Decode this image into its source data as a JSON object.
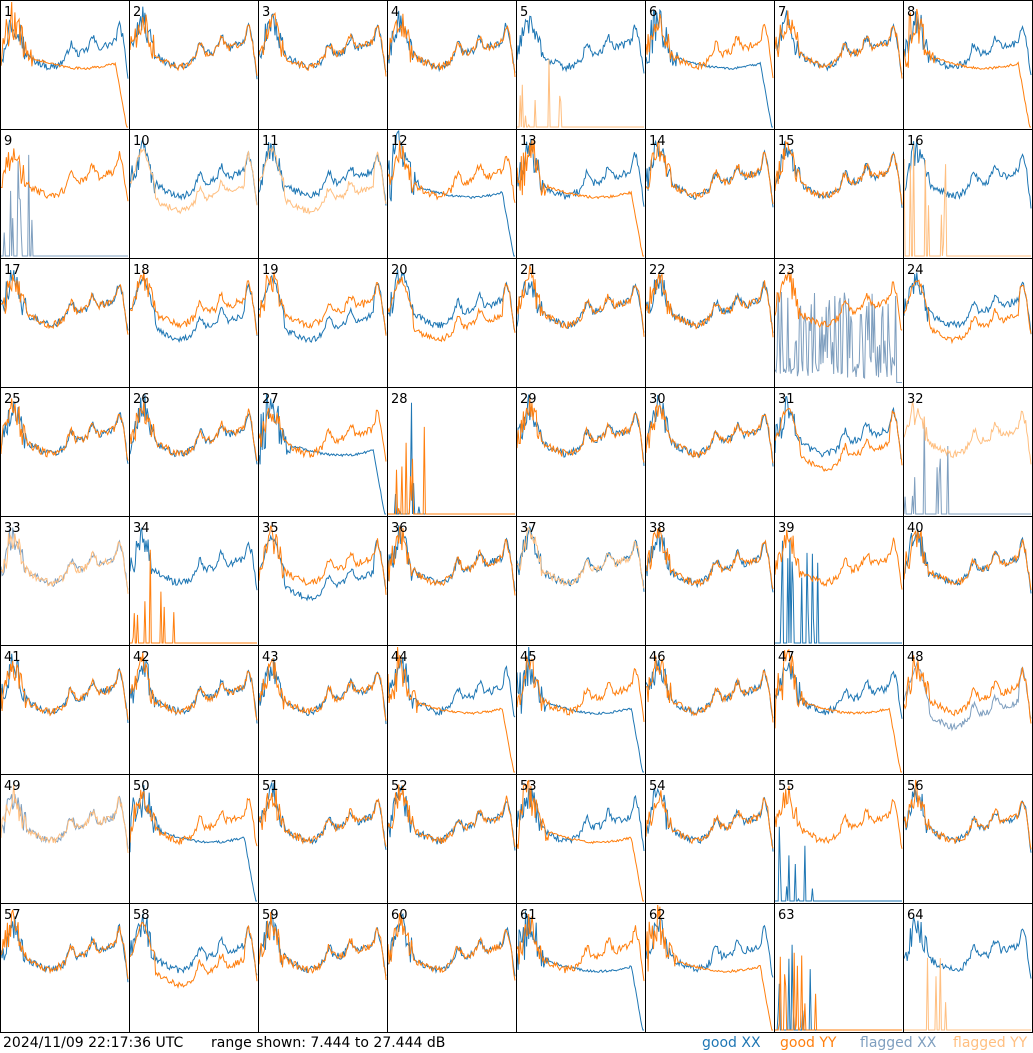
{
  "footer": {
    "timestamp": "2024/11/09 22:17:36 UTC",
    "range_text": "range shown: 7.444 to 27.444 dB"
  },
  "legend": [
    {
      "label": "good XX",
      "color": "#1f77b4"
    },
    {
      "label": "good YY",
      "color": "#ff7f0e"
    },
    {
      "label": "flagged XX",
      "color": "#7f9fbf"
    },
    {
      "label": "flagged YY",
      "color": "#ffbf80"
    }
  ],
  "chart_data": {
    "type": "line",
    "layout": "8x8 small multiples",
    "ylim": [
      7.444,
      27.444
    ],
    "yunit": "dB",
    "panels": [
      {
        "id": "1",
        "xx": "good",
        "yy": "good",
        "xx_shape": "normal",
        "yy_shape": "droop"
      },
      {
        "id": "2",
        "xx": "good",
        "yy": "good",
        "xx_shape": "normal",
        "yy_shape": "normal"
      },
      {
        "id": "3",
        "xx": "good",
        "yy": "good",
        "xx_shape": "normal",
        "yy_shape": "normal"
      },
      {
        "id": "4",
        "xx": "good",
        "yy": "good",
        "xx_shape": "normal",
        "yy_shape": "normal"
      },
      {
        "id": "5",
        "xx": "good",
        "yy": "flagged",
        "xx_shape": "normal",
        "yy_shape": "dead"
      },
      {
        "id": "6",
        "xx": "good",
        "yy": "good",
        "xx_shape": "droop",
        "yy_shape": "normal"
      },
      {
        "id": "7",
        "xx": "good",
        "yy": "good",
        "xx_shape": "normal",
        "yy_shape": "normal"
      },
      {
        "id": "8",
        "xx": "good",
        "yy": "good",
        "xx_shape": "normal",
        "yy_shape": "droop"
      },
      {
        "id": "9",
        "xx": "flagged",
        "yy": "good",
        "xx_shape": "dead",
        "yy_shape": "normal"
      },
      {
        "id": "10",
        "xx": "good",
        "yy": "flagged",
        "xx_shape": "normal",
        "yy_shape": "low"
      },
      {
        "id": "11",
        "xx": "good",
        "yy": "flagged",
        "xx_shape": "normal",
        "yy_shape": "low"
      },
      {
        "id": "12",
        "xx": "good",
        "yy": "good",
        "xx_shape": "droop",
        "yy_shape": "normal"
      },
      {
        "id": "13",
        "xx": "good",
        "yy": "good",
        "xx_shape": "normal",
        "yy_shape": "droop"
      },
      {
        "id": "14",
        "xx": "good",
        "yy": "good",
        "xx_shape": "normal",
        "yy_shape": "normal"
      },
      {
        "id": "15",
        "xx": "good",
        "yy": "good",
        "xx_shape": "normal",
        "yy_shape": "normal"
      },
      {
        "id": "16",
        "xx": "good",
        "yy": "flagged",
        "xx_shape": "normal",
        "yy_shape": "dead"
      },
      {
        "id": "17",
        "xx": "good",
        "yy": "good",
        "xx_shape": "normal",
        "yy_shape": "normal"
      },
      {
        "id": "18",
        "xx": "good",
        "yy": "good",
        "xx_shape": "low",
        "yy_shape": "normal"
      },
      {
        "id": "19",
        "xx": "good",
        "yy": "good",
        "xx_shape": "low",
        "yy_shape": "normal"
      },
      {
        "id": "20",
        "xx": "good",
        "yy": "good",
        "xx_shape": "normal",
        "yy_shape": "low"
      },
      {
        "id": "21",
        "xx": "good",
        "yy": "good",
        "xx_shape": "normal",
        "yy_shape": "normal"
      },
      {
        "id": "22",
        "xx": "good",
        "yy": "good",
        "xx_shape": "normal",
        "yy_shape": "normal"
      },
      {
        "id": "23",
        "xx": "flagged",
        "yy": "good",
        "xx_shape": "noise",
        "yy_shape": "normal"
      },
      {
        "id": "24",
        "xx": "good",
        "yy": "good",
        "xx_shape": "normal",
        "yy_shape": "low"
      },
      {
        "id": "25",
        "xx": "good",
        "yy": "good",
        "xx_shape": "normal",
        "yy_shape": "normal"
      },
      {
        "id": "26",
        "xx": "good",
        "yy": "good",
        "xx_shape": "normal",
        "yy_shape": "normal"
      },
      {
        "id": "27",
        "xx": "good",
        "yy": "good",
        "xx_shape": "droop",
        "yy_shape": "normal"
      },
      {
        "id": "28",
        "xx": "good",
        "yy": "good",
        "xx_shape": "dead",
        "yy_shape": "dead"
      },
      {
        "id": "29",
        "xx": "good",
        "yy": "good",
        "xx_shape": "normal",
        "yy_shape": "normal"
      },
      {
        "id": "30",
        "xx": "good",
        "yy": "good",
        "xx_shape": "normal",
        "yy_shape": "normal"
      },
      {
        "id": "31",
        "xx": "good",
        "yy": "good",
        "xx_shape": "normal",
        "yy_shape": "low"
      },
      {
        "id": "32",
        "xx": "flagged",
        "yy": "flagged",
        "xx_shape": "dead",
        "yy_shape": "normal"
      },
      {
        "id": "33",
        "xx": "flagged",
        "yy": "flagged",
        "xx_shape": "normal",
        "yy_shape": "normal"
      },
      {
        "id": "34",
        "xx": "good",
        "yy": "good",
        "xx_shape": "normal",
        "yy_shape": "dead"
      },
      {
        "id": "35",
        "xx": "good",
        "yy": "good",
        "xx_shape": "low",
        "yy_shape": "normal"
      },
      {
        "id": "36",
        "xx": "good",
        "yy": "good",
        "xx_shape": "normal",
        "yy_shape": "normal"
      },
      {
        "id": "37",
        "xx": "good",
        "yy": "flagged",
        "xx_shape": "normal",
        "yy_shape": "normal"
      },
      {
        "id": "38",
        "xx": "good",
        "yy": "good",
        "xx_shape": "normal",
        "yy_shape": "normal"
      },
      {
        "id": "39",
        "xx": "good",
        "yy": "good",
        "xx_shape": "dead",
        "yy_shape": "normal"
      },
      {
        "id": "40",
        "xx": "good",
        "yy": "good",
        "xx_shape": "normal",
        "yy_shape": "normal"
      },
      {
        "id": "41",
        "xx": "good",
        "yy": "good",
        "xx_shape": "normal",
        "yy_shape": "normal"
      },
      {
        "id": "42",
        "xx": "good",
        "yy": "good",
        "xx_shape": "normal",
        "yy_shape": "normal"
      },
      {
        "id": "43",
        "xx": "good",
        "yy": "good",
        "xx_shape": "normal",
        "yy_shape": "normal"
      },
      {
        "id": "44",
        "xx": "good",
        "yy": "good",
        "xx_shape": "normal",
        "yy_shape": "droop"
      },
      {
        "id": "45",
        "xx": "good",
        "yy": "good",
        "xx_shape": "droop",
        "yy_shape": "normal"
      },
      {
        "id": "46",
        "xx": "good",
        "yy": "good",
        "xx_shape": "normal",
        "yy_shape": "normal"
      },
      {
        "id": "47",
        "xx": "good",
        "yy": "good",
        "xx_shape": "normal",
        "yy_shape": "droop"
      },
      {
        "id": "48",
        "xx": "flagged",
        "yy": "good",
        "xx_shape": "low",
        "yy_shape": "normal"
      },
      {
        "id": "49",
        "xx": "flagged",
        "yy": "flagged",
        "xx_shape": "normal",
        "yy_shape": "normal"
      },
      {
        "id": "50",
        "xx": "good",
        "yy": "good",
        "xx_shape": "droop",
        "yy_shape": "normal"
      },
      {
        "id": "51",
        "xx": "good",
        "yy": "good",
        "xx_shape": "normal",
        "yy_shape": "normal"
      },
      {
        "id": "52",
        "xx": "good",
        "yy": "good",
        "xx_shape": "normal",
        "yy_shape": "normal"
      },
      {
        "id": "53",
        "xx": "good",
        "yy": "good",
        "xx_shape": "normal",
        "yy_shape": "droop"
      },
      {
        "id": "54",
        "xx": "good",
        "yy": "good",
        "xx_shape": "normal",
        "yy_shape": "normal"
      },
      {
        "id": "55",
        "xx": "good",
        "yy": "good",
        "xx_shape": "dead",
        "yy_shape": "normal"
      },
      {
        "id": "56",
        "xx": "good",
        "yy": "good",
        "xx_shape": "normal",
        "yy_shape": "normal"
      },
      {
        "id": "57",
        "xx": "good",
        "yy": "good",
        "xx_shape": "normal",
        "yy_shape": "normal"
      },
      {
        "id": "58",
        "xx": "good",
        "yy": "good",
        "xx_shape": "normal",
        "yy_shape": "low"
      },
      {
        "id": "59",
        "xx": "good",
        "yy": "good",
        "xx_shape": "normal",
        "yy_shape": "normal"
      },
      {
        "id": "60",
        "xx": "good",
        "yy": "good",
        "xx_shape": "normal",
        "yy_shape": "normal"
      },
      {
        "id": "61",
        "xx": "good",
        "yy": "good",
        "xx_shape": "droop",
        "yy_shape": "normal"
      },
      {
        "id": "62",
        "xx": "good",
        "yy": "good",
        "xx_shape": "normal",
        "yy_shape": "droop"
      },
      {
        "id": "63",
        "xx": "good",
        "yy": "good",
        "xx_shape": "dead",
        "yy_shape": "dead"
      },
      {
        "id": "64",
        "xx": "good",
        "yy": "flagged",
        "xx_shape": "normal",
        "yy_shape": "dead"
      }
    ]
  }
}
